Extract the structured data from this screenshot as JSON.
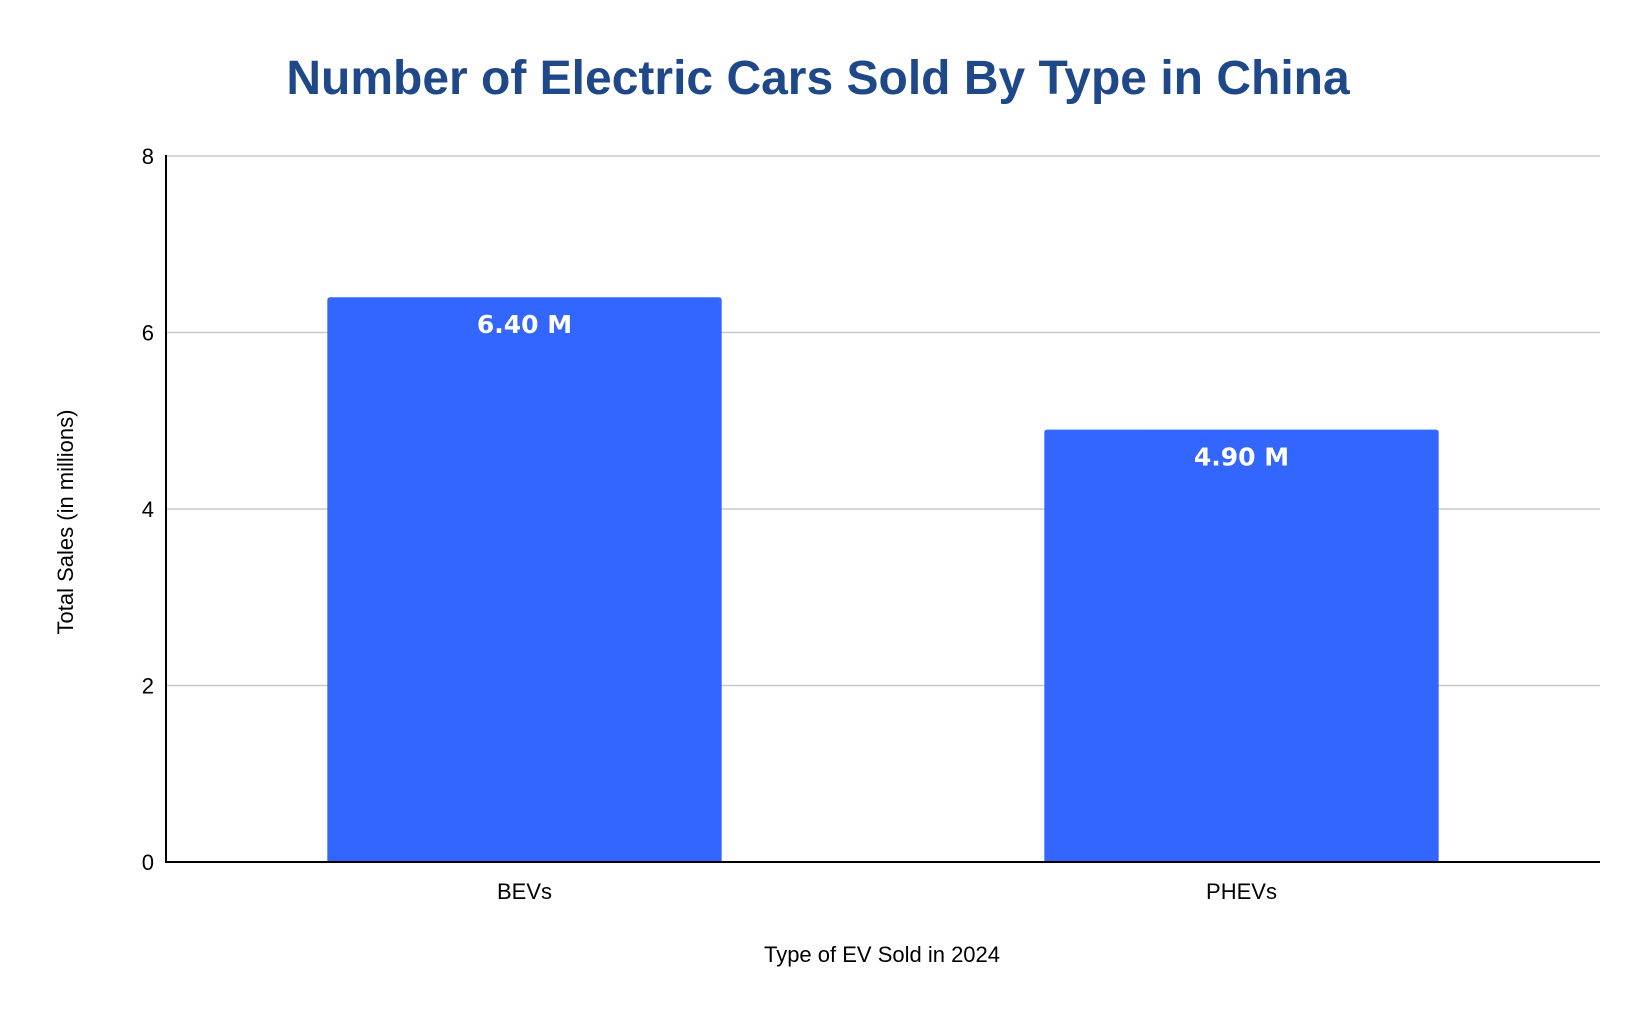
{
  "chart_data": {
    "type": "bar",
    "title": "Number of Electric Cars Sold By Type in China",
    "xlabel": "Type of EV Sold in 2024",
    "ylabel": "Total Sales (in millions)",
    "categories": [
      "BEVs",
      "PHEVs"
    ],
    "values": [
      6.4,
      4.9
    ],
    "data_labels": [
      "6.40 M",
      "4.90 M"
    ],
    "ylim": [
      0,
      8
    ],
    "yticks": [
      0,
      2,
      4,
      6,
      8
    ],
    "grid": true,
    "legend": "none",
    "colors": {
      "bar": "#3366ff",
      "title": "#1f4889",
      "gridline": "#c8c8c8",
      "axis": "#000000",
      "bar_label": "#ffffff"
    }
  }
}
